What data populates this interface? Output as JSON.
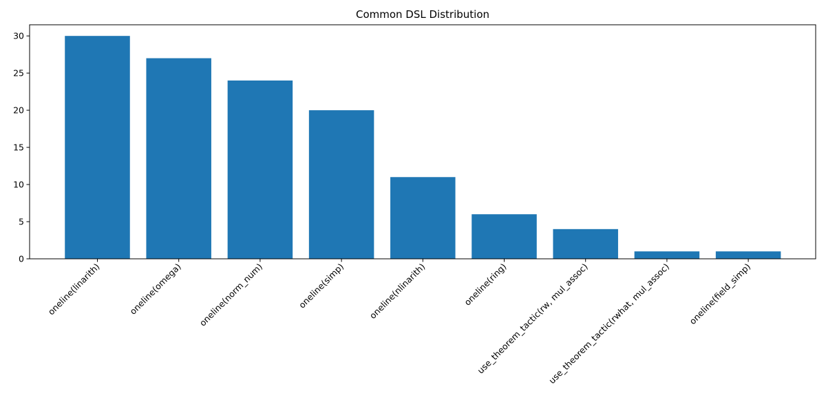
{
  "chart_data": {
    "type": "bar",
    "title": "Common DSL Distribution",
    "xlabel": "",
    "ylabel": "",
    "categories": [
      "oneline(linarith)",
      "oneline(omega)",
      "oneline(norm_num)",
      "oneline(simp)",
      "oneline(nlinarith)",
      "oneline(ring)",
      "use_theorem_tactic(rw, mul_assoc)",
      "use_theorem_tactic(rwhat, mul_assoc)",
      "oneline(field_simp)"
    ],
    "values": [
      30,
      27,
      24,
      20,
      11,
      6,
      4,
      1,
      1
    ],
    "ylim": [
      0,
      31.5
    ],
    "yticks": [
      0,
      5,
      10,
      15,
      20,
      25,
      30
    ],
    "bar_color": "#1f77b4",
    "grid": false,
    "legend": "none"
  }
}
